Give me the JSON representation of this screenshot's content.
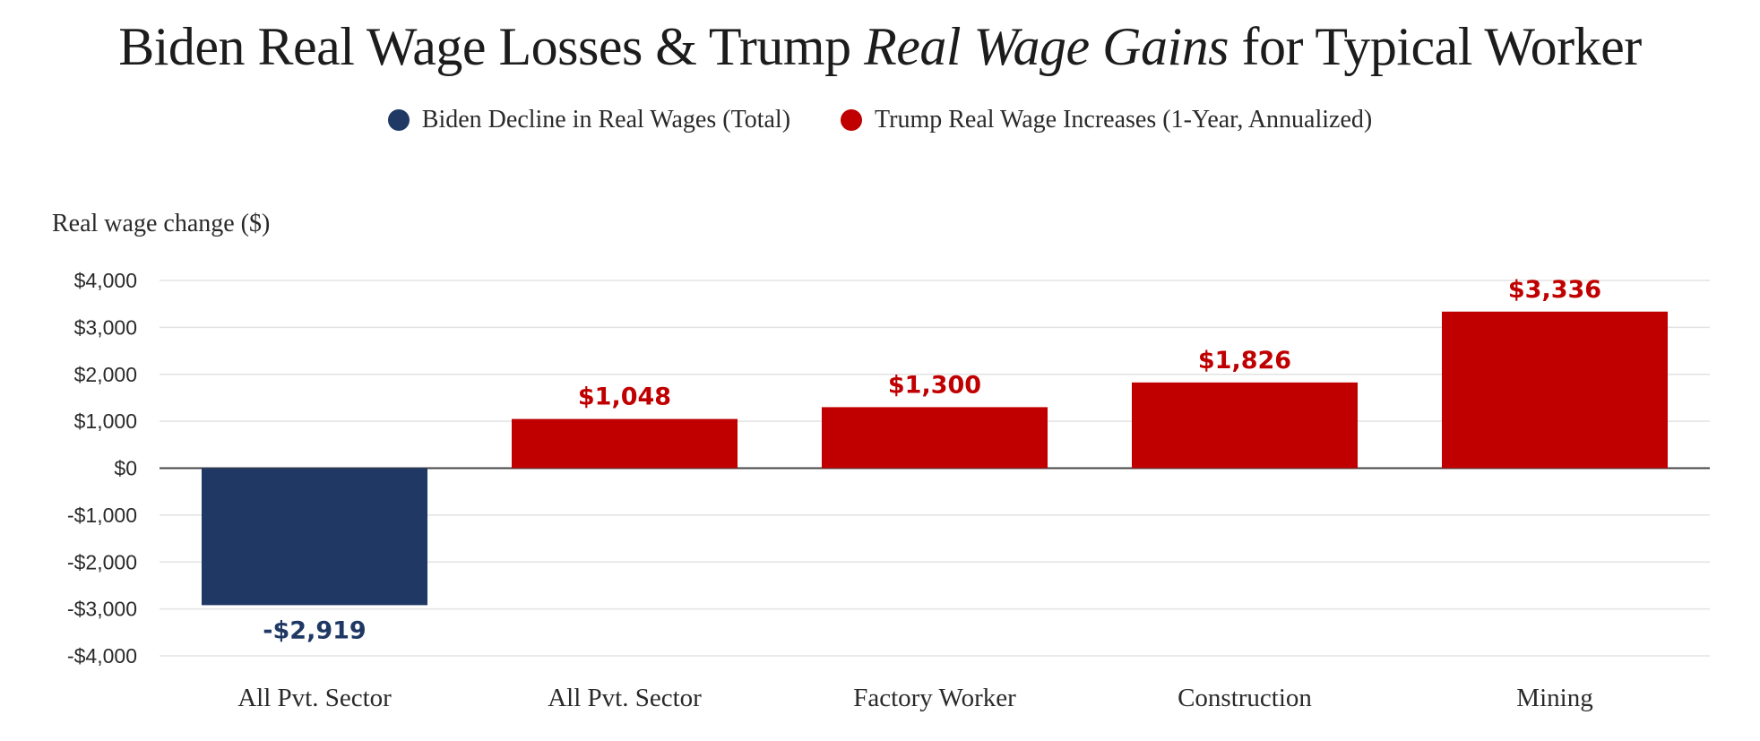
{
  "chart_data": {
    "type": "bar",
    "title_parts": {
      "pre": "Biden Real Wage Losses & Trump ",
      "italic": "Real Wage Gains",
      "post": " for Typical Worker"
    },
    "ylabel": "Real wage change ($)",
    "ylim": [
      -4000,
      4000
    ],
    "yticks": [
      4000,
      3000,
      2000,
      1000,
      0,
      -1000,
      -2000,
      -3000,
      -4000
    ],
    "ytick_labels": [
      "$4,000",
      "$3,000",
      "$2,000",
      "$1,000",
      "$0",
      "-$1,000",
      "-$2,000",
      "-$3,000",
      "-$4,000"
    ],
    "categories": [
      "All Pvt. Sector",
      "All Pvt. Sector",
      "Factory Worker",
      "Construction",
      "Mining"
    ],
    "series": [
      {
        "name": "Biden Decline in Real Wages (Total)",
        "color": "#1f3864"
      },
      {
        "name": "Trump Real Wage Increases (1-Year, Annualized)",
        "color": "#c00000"
      }
    ],
    "bars": [
      {
        "category": "All Pvt. Sector",
        "value": -2919,
        "label": "-$2,919",
        "series": 0
      },
      {
        "category": "All Pvt. Sector",
        "value": 1048,
        "label": "$1,048",
        "series": 1
      },
      {
        "category": "Factory Worker",
        "value": 1300,
        "label": "$1,300",
        "series": 1
      },
      {
        "category": "Construction",
        "value": 1826,
        "label": "$1,826",
        "series": 1
      },
      {
        "category": "Mining",
        "value": 3336,
        "label": "$3,336",
        "series": 1
      }
    ],
    "grid": true,
    "legend_position": "top-center"
  }
}
